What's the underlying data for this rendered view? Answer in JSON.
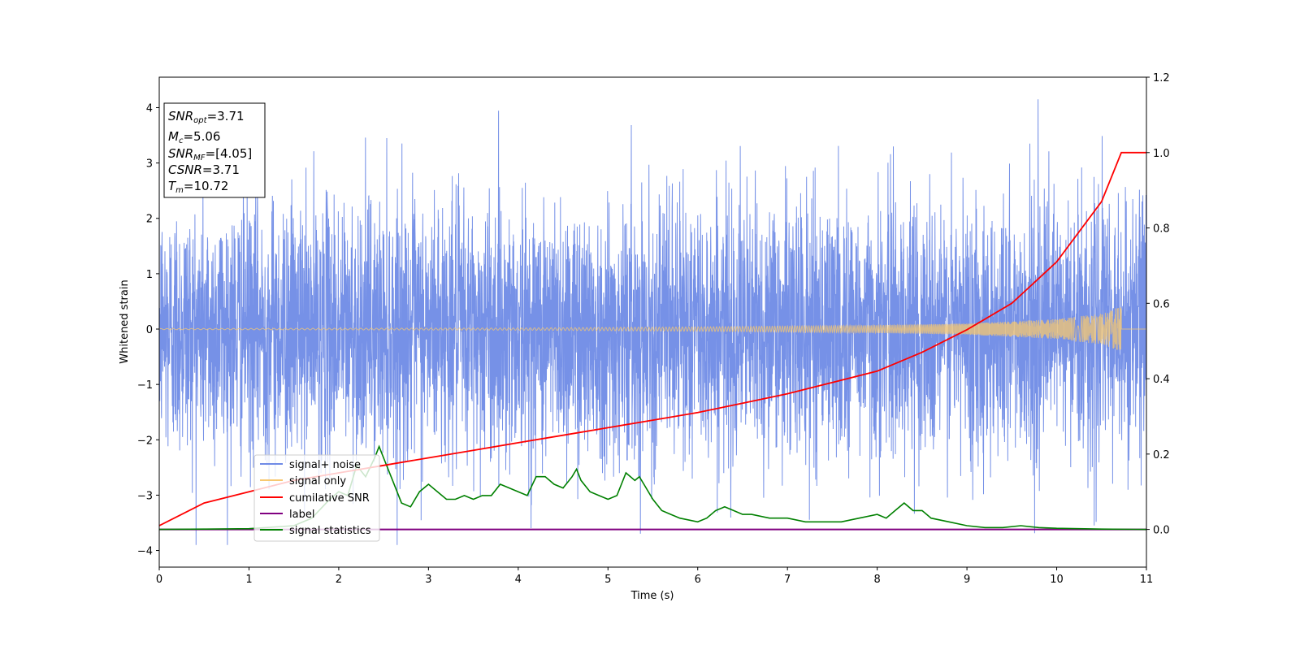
{
  "chart_data": {
    "type": "line",
    "xlabel": "Time (s)",
    "ylabel": "Whitened strain",
    "xlim": [
      0,
      11
    ],
    "ylim_left": [
      -4.3,
      4.55
    ],
    "ylim_right": [
      -0.1,
      1.2
    ],
    "x_ticks": [
      "0",
      "1",
      "2",
      "3",
      "4",
      "5",
      "6",
      "7",
      "8",
      "9",
      "10",
      "11"
    ],
    "y_ticks_left": [
      "−4",
      "−3",
      "−2",
      "−1",
      "0",
      "1",
      "2",
      "3",
      "4"
    ],
    "y_ticks_right": [
      "0.0",
      "0.2",
      "0.4",
      "0.6",
      "0.8",
      "1.0",
      "1.2"
    ],
    "grid": false,
    "legend_position": "lower-left",
    "stats_box": [
      {
        "symbol": "SNR",
        "sub": "opt",
        "value": "=3.71"
      },
      {
        "symbol": "M",
        "sub": "c",
        "value": "=5.06"
      },
      {
        "symbol": "SNR",
        "sub": "MF",
        "value": "=[4.05]"
      },
      {
        "symbol": "CSNR",
        "sub": "",
        "value": "=3.71"
      },
      {
        "symbol": "T",
        "sub": "m",
        "value": "=10.72"
      }
    ],
    "series": [
      {
        "name": "signal+ noise",
        "color": "#6f8be6",
        "axis": "left",
        "kind": "noise",
        "amplitude": 1.15,
        "x_range": [
          0,
          11
        ]
      },
      {
        "name": "signal only",
        "color": "#f7c870",
        "axis": "left",
        "kind": "chirp",
        "envelope_x": [
          0,
          4,
          6,
          8,
          9,
          10,
          10.5,
          10.72
        ],
        "envelope_y": [
          0.01,
          0.02,
          0.04,
          0.07,
          0.1,
          0.18,
          0.28,
          0.4
        ]
      },
      {
        "name": "cumilative SNR",
        "color": "#ff0000",
        "axis": "right",
        "x": [
          0,
          0.5,
          1,
          1.5,
          2,
          2.5,
          3,
          3.5,
          4,
          4.5,
          5,
          5.5,
          6,
          6.5,
          7,
          7.5,
          8,
          8.5,
          9,
          9.5,
          10,
          10.5,
          10.72,
          11
        ],
        "y": [
          0.01,
          0.07,
          0.1,
          0.13,
          0.15,
          0.17,
          0.19,
          0.21,
          0.23,
          0.25,
          0.27,
          0.29,
          0.31,
          0.335,
          0.36,
          0.39,
          0.42,
          0.47,
          0.53,
          0.6,
          0.71,
          0.87,
          1.0,
          1.0
        ]
      },
      {
        "name": "label",
        "color": "#800080",
        "axis": "right",
        "x": [
          0,
          11
        ],
        "y": [
          0,
          0
        ]
      },
      {
        "name": "signal statistics",
        "color": "#008000",
        "axis": "right",
        "x": [
          0,
          0.5,
          1.0,
          1.5,
          1.7,
          1.9,
          2.0,
          2.1,
          2.2,
          2.3,
          2.4,
          2.45,
          2.5,
          2.6,
          2.7,
          2.8,
          2.9,
          3.0,
          3.1,
          3.2,
          3.3,
          3.4,
          3.5,
          3.6,
          3.7,
          3.8,
          3.9,
          4.0,
          4.1,
          4.2,
          4.3,
          4.4,
          4.5,
          4.6,
          4.65,
          4.7,
          4.8,
          4.9,
          5.0,
          5.1,
          5.2,
          5.3,
          5.35,
          5.4,
          5.5,
          5.6,
          5.7,
          5.8,
          6.0,
          6.1,
          6.2,
          6.3,
          6.4,
          6.5,
          6.6,
          6.8,
          7.0,
          7.2,
          7.4,
          7.6,
          7.8,
          8.0,
          8.1,
          8.2,
          8.3,
          8.4,
          8.5,
          8.6,
          8.8,
          9.0,
          9.2,
          9.4,
          9.6,
          9.8,
          10.0,
          10.5,
          11.0
        ],
        "y": [
          0.0,
          0.001,
          0.002,
          0.01,
          0.03,
          0.08,
          0.1,
          0.09,
          0.17,
          0.14,
          0.19,
          0.22,
          0.19,
          0.13,
          0.07,
          0.06,
          0.1,
          0.12,
          0.1,
          0.08,
          0.08,
          0.09,
          0.08,
          0.09,
          0.09,
          0.12,
          0.11,
          0.1,
          0.09,
          0.14,
          0.14,
          0.12,
          0.11,
          0.14,
          0.16,
          0.13,
          0.1,
          0.09,
          0.08,
          0.09,
          0.15,
          0.13,
          0.14,
          0.12,
          0.08,
          0.05,
          0.04,
          0.03,
          0.02,
          0.03,
          0.05,
          0.06,
          0.05,
          0.04,
          0.04,
          0.03,
          0.03,
          0.02,
          0.02,
          0.02,
          0.03,
          0.04,
          0.03,
          0.05,
          0.07,
          0.05,
          0.05,
          0.03,
          0.02,
          0.01,
          0.005,
          0.005,
          0.01,
          0.005,
          0.003,
          0.001,
          0.0
        ]
      }
    ]
  }
}
